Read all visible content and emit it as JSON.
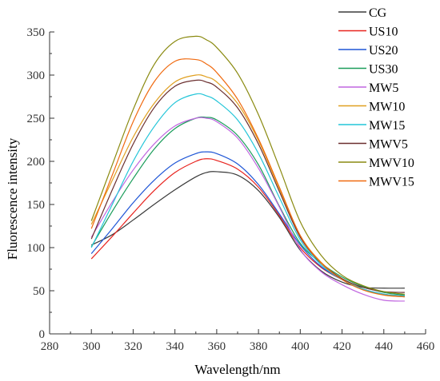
{
  "chart_data": {
    "type": "line",
    "title": "",
    "xlabel": "Wavelength/nm",
    "ylabel": "Fluorescence intensity",
    "xlim": [
      280,
      460
    ],
    "ylim": [
      0,
      350
    ],
    "xticks": [
      280,
      300,
      320,
      340,
      360,
      380,
      400,
      420,
      440,
      460
    ],
    "yticks": [
      0,
      50,
      100,
      150,
      200,
      250,
      300,
      350
    ],
    "grid": false,
    "legend_position": "top-right",
    "series": [
      {
        "name": "CG",
        "color": "#3a3a3a",
        "x": [
          300,
          310,
          320,
          330,
          340,
          350,
          355,
          360,
          370,
          380,
          390,
          400,
          410,
          420,
          430,
          440,
          450
        ],
        "y": [
          103,
          115,
          132,
          150,
          167,
          182,
          187,
          188,
          184,
          166,
          135,
          97,
          73,
          60,
          54,
          53,
          53
        ]
      },
      {
        "name": "US10",
        "color": "#e8231e",
        "x": [
          300,
          310,
          320,
          330,
          340,
          350,
          355,
          360,
          370,
          380,
          390,
          400,
          410,
          420,
          430,
          440,
          450
        ],
        "y": [
          87,
          113,
          140,
          166,
          187,
          200,
          203,
          201,
          191,
          170,
          137,
          100,
          77,
          63,
          52,
          46,
          44
        ]
      },
      {
        "name": "US20",
        "color": "#1f56d6",
        "x": [
          300,
          310,
          320,
          330,
          340,
          350,
          355,
          360,
          370,
          380,
          390,
          400,
          410,
          420,
          430,
          440,
          450
        ],
        "y": [
          93,
          122,
          152,
          178,
          198,
          209,
          211,
          209,
          197,
          173,
          139,
          103,
          78,
          63,
          52,
          46,
          43
        ]
      },
      {
        "name": "US30",
        "color": "#1a9c5a",
        "x": [
          300,
          310,
          320,
          330,
          340,
          350,
          355,
          360,
          370,
          380,
          390,
          400,
          410,
          420,
          430,
          440,
          450
        ],
        "y": [
          101,
          142,
          180,
          214,
          238,
          250,
          251,
          248,
          230,
          196,
          148,
          105,
          82,
          66,
          55,
          48,
          45
        ]
      },
      {
        "name": "MW5",
        "color": "#c066e0",
        "x": [
          300,
          310,
          320,
          330,
          340,
          350,
          355,
          360,
          370,
          380,
          390,
          400,
          410,
          420,
          430,
          440,
          450
        ],
        "y": [
          112,
          153,
          190,
          220,
          241,
          250,
          250,
          246,
          227,
          192,
          147,
          98,
          72,
          57,
          46,
          39,
          38
        ]
      },
      {
        "name": "MW10",
        "color": "#e0a020",
        "x": [
          300,
          310,
          320,
          330,
          340,
          350,
          355,
          360,
          370,
          380,
          390,
          400,
          410,
          420,
          430,
          440,
          450
        ],
        "y": [
          127,
          178,
          228,
          267,
          292,
          300,
          298,
          292,
          267,
          224,
          168,
          114,
          83,
          64,
          52,
          45,
          43
        ]
      },
      {
        "name": "MW15",
        "color": "#22c5d8",
        "x": [
          300,
          310,
          320,
          330,
          340,
          350,
          355,
          360,
          370,
          380,
          390,
          400,
          410,
          420,
          430,
          440,
          450
        ],
        "y": [
          100,
          150,
          200,
          240,
          268,
          278,
          276,
          270,
          248,
          209,
          158,
          109,
          80,
          63,
          52,
          46,
          44
        ]
      },
      {
        "name": "MWV5",
        "color": "#6b2f2f",
        "x": [
          300,
          310,
          320,
          330,
          340,
          350,
          355,
          360,
          370,
          380,
          390,
          400,
          410,
          420,
          430,
          440,
          450
        ],
        "y": [
          110,
          167,
          220,
          262,
          287,
          294,
          292,
          286,
          262,
          220,
          165,
          112,
          82,
          64,
          54,
          49,
          48
        ]
      },
      {
        "name": "MWV10",
        "color": "#8a8a10",
        "x": [
          300,
          310,
          320,
          330,
          340,
          350,
          355,
          360,
          370,
          380,
          390,
          400,
          410,
          420,
          430,
          440,
          450
        ],
        "y": [
          131,
          196,
          260,
          312,
          339,
          345,
          341,
          332,
          302,
          254,
          193,
          130,
          91,
          68,
          56,
          49,
          46
        ]
      },
      {
        "name": "MWV15",
        "color": "#f06a10",
        "x": [
          300,
          310,
          320,
          330,
          340,
          350,
          355,
          360,
          370,
          380,
          390,
          400,
          410,
          420,
          430,
          440,
          450
        ],
        "y": [
          122,
          184,
          246,
          292,
          316,
          318,
          313,
          303,
          272,
          226,
          170,
          114,
          82,
          63,
          51,
          45,
          43
        ]
      }
    ]
  }
}
